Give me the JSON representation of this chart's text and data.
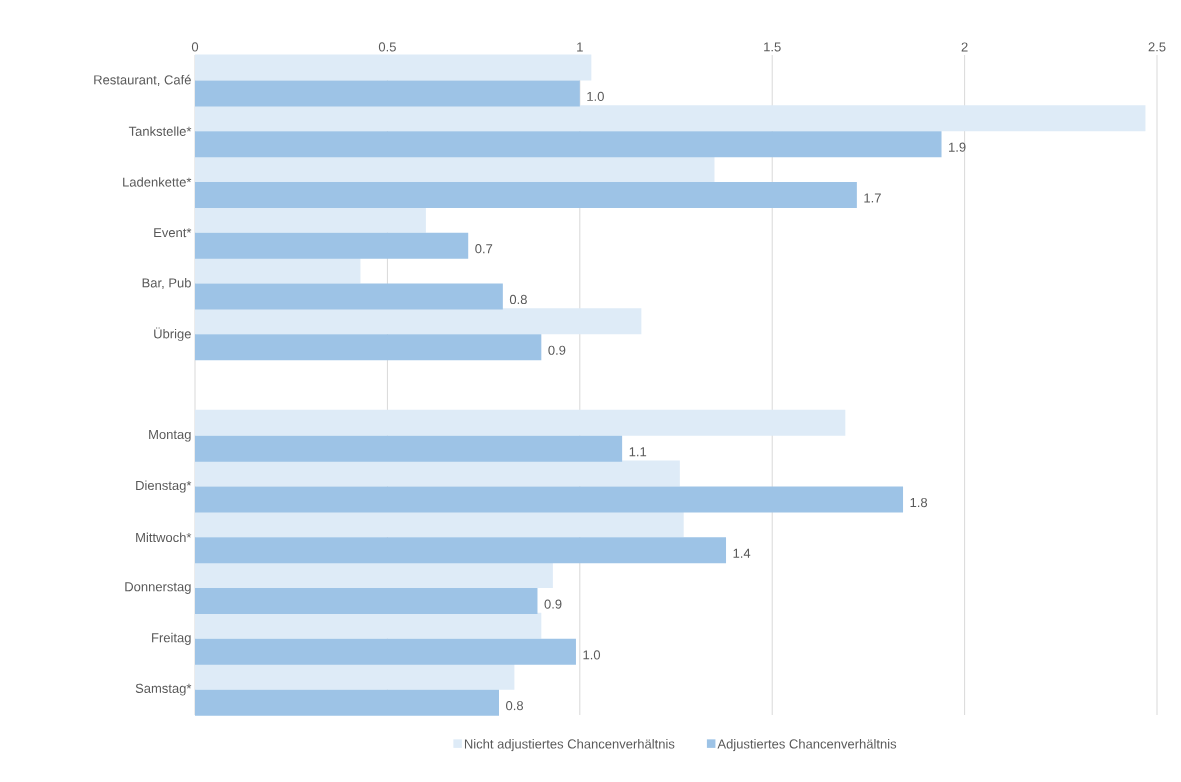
{
  "chart_data": {
    "type": "bar",
    "orientation": "horizontal",
    "categories": [
      "Restaurant, Café",
      "Tankstelle*",
      "Ladenkette*",
      "Event*",
      "Bar, Pub",
      "Übrige",
      null,
      "Montag",
      "Dienstag*",
      "Mittwoch*",
      "Donnerstag",
      "Freitag",
      "Samstag*"
    ],
    "series": [
      {
        "name": "Nicht adjustiertes Chancenverhältnis",
        "color": "#deebf7",
        "values": [
          1.03,
          2.47,
          1.35,
          0.6,
          0.43,
          1.16,
          null,
          1.69,
          1.26,
          1.27,
          0.93,
          0.9,
          0.83
        ]
      },
      {
        "name": "Adjustiertes Chancenverhältnis",
        "color": "#9dc3e6",
        "values": [
          1.0,
          1.94,
          1.72,
          0.71,
          0.8,
          0.9,
          null,
          1.11,
          1.84,
          1.38,
          0.89,
          0.99,
          0.79
        ],
        "value_labels": [
          "1.0",
          "1.9",
          "1.7",
          "0.7",
          "0.8",
          "0.9",
          null,
          "1.1",
          "1.8",
          "1.4",
          "0.9",
          "1.0",
          "0.8"
        ]
      }
    ],
    "xlim": [
      0,
      2.5
    ],
    "xticks": [
      0,
      0.5,
      1,
      1.5,
      2,
      2.5
    ],
    "grid": "x",
    "legend": "bottom"
  }
}
